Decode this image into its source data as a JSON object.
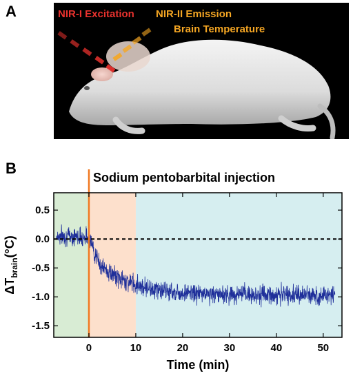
{
  "panels": {
    "a": "A",
    "b": "B"
  },
  "photo": {
    "excitation_label": "NIR-I Excitation",
    "emission_label": "NIR-II Emission",
    "temperature_label": "Brain Temperature",
    "excitation_color": "#e8322e",
    "emission_color": "#f5a623"
  },
  "chart_data": {
    "type": "line",
    "annotation": "Sodium pentobarbital injection",
    "annotation_x": 0,
    "annotation_color": "#f07820",
    "xlabel": "Time (min)",
    "ylabel_main": "ΔT",
    "ylabel_sub": "brain",
    "ylabel_unit": "(°C)",
    "xlim": [
      -7.5,
      54
    ],
    "ylim": [
      -1.7,
      0.8
    ],
    "xticks": [
      0,
      10,
      20,
      30,
      40,
      50
    ],
    "yticks": [
      0.5,
      0.0,
      -0.5,
      -1.0,
      -1.5
    ],
    "xtick_labels": [
      "0",
      "10",
      "20",
      "30",
      "40",
      "50"
    ],
    "ytick_labels": [
      "0.5",
      "0.0",
      "-0.5",
      "-1.0",
      "-1.5"
    ],
    "reference_line_y": 0.0,
    "regions": [
      {
        "x_start": -7.5,
        "x_end": 0,
        "color": "#d8ecd4"
      },
      {
        "x_start": 0,
        "x_end": 10,
        "color": "#fde0cc"
      },
      {
        "x_start": 10,
        "x_end": 54,
        "color": "#d6eef0"
      }
    ],
    "series": [
      {
        "color": "#1f2f9a",
        "trend": [
          [
            -7,
            0.05
          ],
          [
            -3.5,
            0.05
          ],
          [
            -0.5,
            0.03
          ],
          [
            0,
            0.02
          ],
          [
            0.5,
            -0.05
          ],
          [
            1,
            -0.2
          ],
          [
            2,
            -0.38
          ],
          [
            3,
            -0.5
          ],
          [
            5,
            -0.62
          ],
          [
            7,
            -0.7
          ],
          [
            10,
            -0.78
          ],
          [
            13,
            -0.85
          ],
          [
            16,
            -0.9
          ],
          [
            20,
            -0.93
          ],
          [
            25,
            -0.95
          ],
          [
            30,
            -0.96
          ],
          [
            35,
            -0.96
          ],
          [
            40,
            -0.97
          ],
          [
            45,
            -0.97
          ],
          [
            50,
            -0.97
          ],
          [
            52.5,
            -0.97
          ]
        ],
        "noise_amplitude": 0.15
      }
    ]
  }
}
